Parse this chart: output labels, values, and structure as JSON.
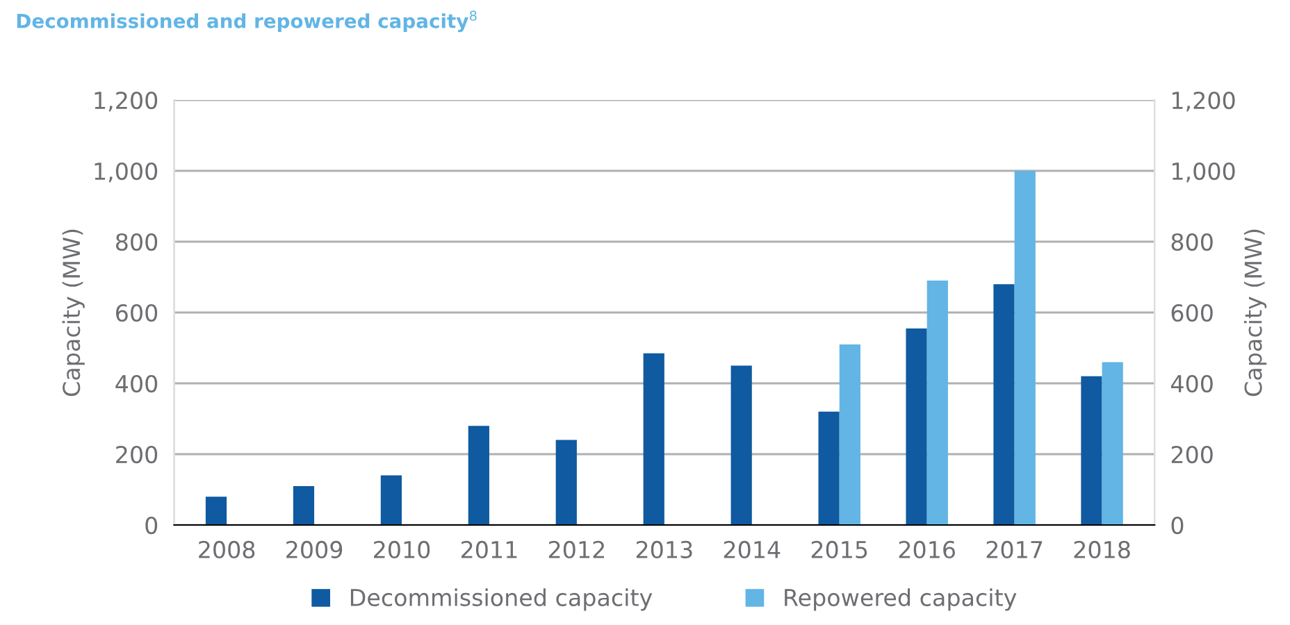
{
  "chart_data": {
    "type": "bar",
    "title": "Decommissioned and repowered capacity$^{8}$",
    "categories": [
      "2008",
      "2009",
      "2010",
      "2011",
      "2012",
      "2013",
      "2014",
      "2015",
      "2016",
      "2017",
      "2018"
    ],
    "series": [
      {
        "name": "Decommissioned capacity",
        "color": "#0f5aa0",
        "values": [
          80,
          110,
          140,
          280,
          240,
          485,
          450,
          320,
          555,
          680,
          420
        ]
      },
      {
        "name": "Repowered capacity",
        "color": "#62b5e5",
        "values": [
          null,
          null,
          null,
          null,
          null,
          null,
          null,
          510,
          690,
          1000,
          460
        ]
      }
    ],
    "ylabel": "Capacity (MW)",
    "y2label": "Capacity (MW)",
    "ylim": [
      0,
      1200
    ],
    "yticks": [
      {
        "value": 0,
        "label": "0"
      },
      {
        "value": 200,
        "label": "200"
      },
      {
        "value": 400,
        "label": "400"
      },
      {
        "value": 600,
        "label": "600"
      },
      {
        "value": 800,
        "label": "800"
      },
      {
        "value": 1000,
        "label": "1,000"
      },
      {
        "value": 1200,
        "label": "1,200"
      }
    ],
    "y2lim": [
      0,
      1200
    ],
    "y2ticks": [
      {
        "value": 0,
        "label": "0"
      },
      {
        "value": 200,
        "label": "200"
      },
      {
        "value": 400,
        "label": "400"
      },
      {
        "value": 600,
        "label": "600"
      },
      {
        "value": 800,
        "label": "800"
      },
      {
        "value": 1000,
        "label": "1,000"
      },
      {
        "value": 1200,
        "label": "1,200"
      }
    ],
    "grid": "y",
    "legend": "bottom"
  }
}
